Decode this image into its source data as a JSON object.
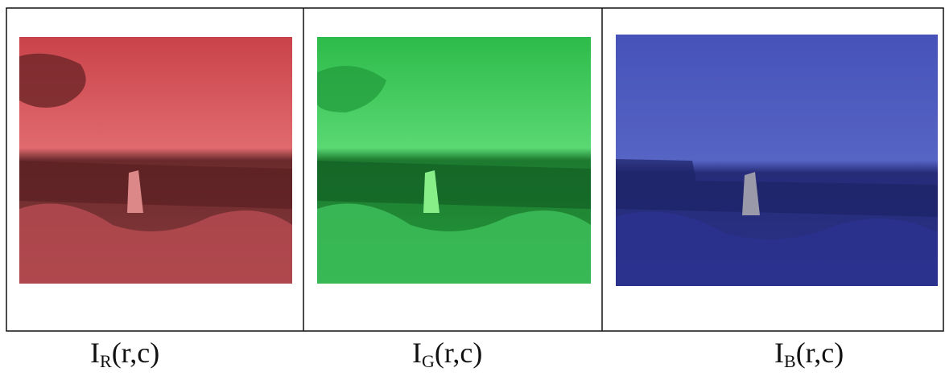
{
  "figure": {
    "panels": [
      {
        "symbol": "I",
        "channel": "R",
        "args": "(r,c)"
      },
      {
        "symbol": "I",
        "channel": "G",
        "args": "(r,c)"
      },
      {
        "symbol": "I",
        "channel": "B",
        "args": "(r,c)"
      }
    ]
  }
}
